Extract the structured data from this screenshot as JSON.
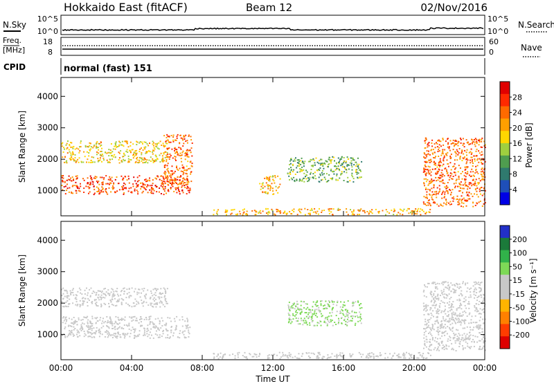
{
  "header": {
    "station": "Hokkaido East (fitACF)",
    "beam": "Beam 12",
    "date": "02/Nov/2016"
  },
  "strips": {
    "nsky_label": "N.Sky",
    "nsky_ticks": [
      "10^5",
      "10^0"
    ],
    "nsearch_label": "N.Search",
    "freq_label_1": "Freq.",
    "freq_label_2": "[MHz]",
    "freq_ticks": [
      "18",
      "8"
    ],
    "nave_label": "Nave",
    "nave_ticks": [
      "60",
      "0"
    ],
    "cpid_label": "CPID",
    "cpid_value": "normal (fast) 151"
  },
  "colors": {
    "power_scale": [
      "#0000e6",
      "#1f4fb8",
      "#2f7a6e",
      "#4f9d4f",
      "#9fcf3f",
      "#ffd700",
      "#ff9f00",
      "#ff6a00",
      "#ff2a00",
      "#e00000"
    ],
    "velocity_scale": [
      "#2230c8",
      "#1b7a3a",
      "#31b24a",
      "#7ed957",
      "#c8c8c8",
      "#c8c8c8",
      "#ffb400",
      "#ff8000",
      "#ff3c00",
      "#dd0000"
    ]
  },
  "chart_data": [
    {
      "type": "heatmap",
      "name": "power",
      "xlabel": "",
      "ylabel": "Slant Range [km]",
      "x_ticks": [],
      "y_ticks": [
        "1000",
        "2000",
        "3000",
        "4000"
      ],
      "ylim": [
        200,
        4600
      ],
      "colorbar": {
        "label": "Power [dB]",
        "ticks": [
          "4",
          "8",
          "12",
          "16",
          "20",
          "24",
          "28"
        ]
      },
      "regions": [
        {
          "desc": "strong E/F echoes 00-07 UT",
          "x_hours": [
            0,
            7.3
          ],
          "range_km": [
            900,
            1500
          ],
          "value_db": 26
        },
        {
          "desc": "rising band to 2800 km",
          "x_hours": [
            5.8,
            7.4
          ],
          "range_km": [
            1200,
            2800
          ],
          "value_db": 24
        },
        {
          "desc": "upper weak band 00-06 UT",
          "x_hours": [
            0,
            6
          ],
          "range_km": [
            1900,
            2600
          ],
          "value_db": 18
        },
        {
          "desc": "patch near 11-12 UT",
          "x_hours": [
            11.2,
            12.4
          ],
          "range_km": [
            900,
            1500
          ],
          "value_db": 20
        },
        {
          "desc": "band 13-17 UT",
          "x_hours": [
            12.8,
            17
          ],
          "range_km": [
            1300,
            2100
          ],
          "value_db": 12
        },
        {
          "desc": "descending echoes 20-24 UT",
          "x_hours": [
            20.5,
            24
          ],
          "range_km": [
            500,
            2700
          ],
          "value_db": 24
        },
        {
          "desc": "near-range ground scatter",
          "x_hours": [
            8.5,
            21
          ],
          "range_km": [
            250,
            450
          ],
          "value_db": 20
        }
      ]
    },
    {
      "type": "heatmap",
      "name": "velocity",
      "xlabel": "Time UT",
      "ylabel": "Slant Range [km]",
      "x_ticks": [
        "00:00",
        "04:00",
        "08:00",
        "12:00",
        "16:00",
        "20:00",
        "00:00"
      ],
      "y_ticks": [
        "1000",
        "2000",
        "3000",
        "4000"
      ],
      "ylim": [
        200,
        4600
      ],
      "colorbar": {
        "label": "Velocity [m s⁻¹]",
        "ticks": [
          "200",
          "100",
          "50",
          "15",
          "-15",
          "-50",
          "-100",
          "-200"
        ]
      },
      "regions": [
        {
          "desc": "ground scatter 00-07 UT",
          "x_hours": [
            0,
            7.3
          ],
          "range_km": [
            900,
            1600
          ],
          "value_ms": 0
        },
        {
          "desc": "upper band",
          "x_hours": [
            0,
            6
          ],
          "range_km": [
            1900,
            2500
          ],
          "value_ms": 0
        },
        {
          "desc": "positive velocity band 13-17 UT",
          "x_hours": [
            12.8,
            17
          ],
          "range_km": [
            1300,
            2100
          ],
          "value_ms": 60
        },
        {
          "desc": "descending ground scatter 20-24 UT",
          "x_hours": [
            20.5,
            24
          ],
          "range_km": [
            500,
            2700
          ],
          "value_ms": 0
        },
        {
          "desc": "near-range band",
          "x_hours": [
            8.5,
            21
          ],
          "range_km": [
            250,
            450
          ],
          "value_ms": 20
        }
      ]
    }
  ]
}
